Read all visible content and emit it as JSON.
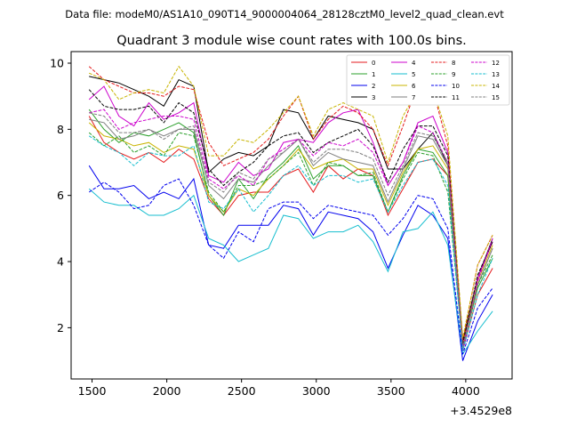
{
  "header": {
    "data_file": "Data file: modeM0/AS1A10_090T14_9000004064_28128cztM0_level2_quad_clean.evt"
  },
  "chart_data": {
    "type": "line",
    "title": "Quadrant 3 module wise count rates with 100.0s bins.",
    "xlabel": "",
    "ylabel": "",
    "x_offset_label": "+3.4529e8",
    "xlim": [
      1360,
      4310
    ],
    "ylim": [
      0.45,
      10.35
    ],
    "x_ticks": [
      1500,
      2000,
      2500,
      3000,
      3500,
      4000
    ],
    "x_tick_labels": [
      "1500",
      "2000",
      "2500",
      "3000",
      "3500",
      "4000"
    ],
    "y_ticks": [
      2,
      4,
      6,
      8,
      10
    ],
    "y_tick_labels": [
      "2",
      "4",
      "6",
      "8",
      "10"
    ],
    "grid": false,
    "legend_position": "top-right",
    "x": [
      1480,
      1580,
      1680,
      1780,
      1880,
      1980,
      2080,
      2180,
      2280,
      2380,
      2480,
      2580,
      2680,
      2780,
      2880,
      2980,
      3080,
      3180,
      3280,
      3380,
      3480,
      3580,
      3680,
      3780,
      3880,
      3980,
      4080,
      4180
    ],
    "series": [
      {
        "name": "0",
        "color": "#e41a1c",
        "dash": "solid",
        "values": [
          8.4,
          7.6,
          7.3,
          7.1,
          7.3,
          7.0,
          7.4,
          7.1,
          5.9,
          5.4,
          6.0,
          6.1,
          6.1,
          6.6,
          6.8,
          6.1,
          6.9,
          6.5,
          6.8,
          6.6,
          5.4,
          6.2,
          7.0,
          7.1,
          6.6,
          1.3,
          3.0,
          3.8
        ]
      },
      {
        "name": "1",
        "color": "#2ca02c",
        "dash": "solid",
        "values": [
          8.6,
          8.0,
          7.6,
          7.9,
          7.8,
          8.0,
          8.2,
          7.9,
          6.0,
          5.4,
          6.5,
          5.9,
          6.6,
          7.0,
          7.5,
          6.5,
          6.9,
          6.9,
          6.6,
          6.6,
          5.5,
          6.6,
          7.4,
          7.3,
          6.6,
          1.4,
          3.2,
          4.1
        ]
      },
      {
        "name": "2",
        "color": "#0000ee",
        "dash": "solid",
        "values": [
          6.9,
          6.2,
          6.2,
          6.3,
          5.9,
          6.1,
          5.9,
          6.5,
          4.5,
          4.4,
          5.1,
          5.1,
          5.1,
          5.7,
          5.6,
          4.8,
          5.5,
          5.4,
          5.3,
          4.9,
          3.8,
          4.8,
          5.7,
          5.4,
          4.7,
          1.0,
          2.2,
          3.0
        ]
      },
      {
        "name": "3",
        "color": "#000000",
        "dash": "solid",
        "values": [
          9.6,
          9.5,
          9.4,
          9.2,
          9.0,
          8.7,
          9.5,
          9.3,
          6.7,
          7.1,
          7.3,
          7.2,
          7.5,
          8.6,
          8.5,
          7.7,
          8.4,
          8.3,
          8.2,
          8.0,
          6.8,
          6.8,
          7.4,
          7.9,
          6.9,
          1.6,
          3.5,
          4.7
        ]
      },
      {
        "name": "4",
        "color": "#cc00cc",
        "dash": "solid",
        "values": [
          8.9,
          9.3,
          8.4,
          8.1,
          8.8,
          8.3,
          8.5,
          8.8,
          6.6,
          6.4,
          7.0,
          6.6,
          6.8,
          7.6,
          7.7,
          7.6,
          8.2,
          8.5,
          8.6,
          7.6,
          6.3,
          7.0,
          8.2,
          8.4,
          7.3,
          1.3,
          3.5,
          4.6
        ]
      },
      {
        "name": "5",
        "color": "#17becf",
        "dash": "solid",
        "values": [
          6.2,
          5.8,
          5.7,
          5.7,
          5.4,
          5.4,
          5.6,
          6.0,
          4.7,
          4.5,
          4.0,
          4.2,
          4.4,
          5.4,
          5.3,
          4.7,
          4.9,
          4.9,
          5.1,
          4.6,
          3.7,
          4.9,
          5.0,
          5.5,
          4.5,
          1.2,
          1.9,
          2.5
        ]
      },
      {
        "name": "6",
        "color": "#c8b400",
        "dash": "solid",
        "values": [
          8.2,
          7.8,
          7.7,
          7.5,
          7.6,
          7.3,
          7.5,
          7.4,
          6.0,
          5.5,
          6.2,
          6.0,
          6.5,
          6.9,
          7.4,
          6.8,
          7.0,
          7.1,
          6.8,
          6.8,
          5.7,
          6.7,
          7.4,
          7.5,
          6.8,
          1.5,
          3.4,
          4.5
        ]
      },
      {
        "name": "7",
        "color": "#7f7f7f",
        "dash": "solid",
        "values": [
          8.3,
          8.2,
          7.7,
          7.8,
          8.0,
          7.8,
          8.0,
          8.0,
          6.3,
          5.9,
          6.5,
          6.4,
          6.9,
          7.3,
          7.7,
          6.9,
          7.3,
          7.1,
          7.0,
          6.9,
          5.8,
          6.8,
          7.8,
          7.7,
          6.9,
          1.4,
          3.3,
          4.4
        ]
      },
      {
        "name": "8",
        "color": "#e41a1c",
        "dash": "dashed",
        "values": [
          9.9,
          9.5,
          9.3,
          9.1,
          9.1,
          9.0,
          9.3,
          9.2,
          7.6,
          6.9,
          7.1,
          7.3,
          7.7,
          8.4,
          9.0,
          7.7,
          8.3,
          8.7,
          8.5,
          8.0,
          6.9,
          8.1,
          9.4,
          9.2,
          7.5,
          1.6,
          3.9,
          4.8
        ]
      },
      {
        "name": "9",
        "color": "#2ca02c",
        "dash": "dashed",
        "values": [
          7.9,
          7.5,
          7.8,
          7.3,
          7.5,
          7.2,
          7.9,
          7.8,
          6.1,
          5.5,
          6.3,
          6.3,
          6.5,
          6.9,
          7.3,
          6.3,
          7.0,
          6.9,
          6.6,
          6.7,
          5.5,
          6.5,
          7.3,
          7.2,
          6.1,
          1.4,
          3.3,
          4.2
        ]
      },
      {
        "name": "10",
        "color": "#0000ee",
        "dash": "dashed",
        "values": [
          6.1,
          6.4,
          6.1,
          5.6,
          5.7,
          6.3,
          6.5,
          5.7,
          4.5,
          4.1,
          4.9,
          4.6,
          5.6,
          5.8,
          5.8,
          5.3,
          5.7,
          5.6,
          5.5,
          5.4,
          4.8,
          5.3,
          6.0,
          5.9,
          5.0,
          1.2,
          2.6,
          3.2
        ]
      },
      {
        "name": "11",
        "color": "#000000",
        "dash": "dashed",
        "values": [
          9.2,
          8.7,
          8.6,
          8.6,
          8.7,
          8.2,
          8.8,
          8.5,
          6.8,
          6.3,
          6.7,
          7.0,
          7.5,
          7.8,
          7.9,
          7.3,
          7.6,
          7.8,
          8.0,
          7.5,
          6.4,
          7.4,
          8.1,
          8.1,
          7.2,
          1.5,
          3.6,
          4.6
        ]
      },
      {
        "name": "12",
        "color": "#cc00cc",
        "dash": "dashed",
        "values": [
          8.5,
          8.6,
          8.0,
          8.2,
          8.3,
          8.4,
          8.4,
          8.3,
          6.5,
          6.2,
          6.6,
          6.3,
          7.1,
          7.4,
          7.7,
          7.2,
          7.6,
          7.5,
          7.7,
          7.3,
          6.3,
          7.0,
          8.1,
          7.9,
          7.0,
          1.4,
          3.4,
          4.7
        ]
      },
      {
        "name": "13",
        "color": "#17becf",
        "dash": "dashed",
        "values": [
          7.8,
          7.5,
          7.3,
          6.9,
          7.3,
          7.2,
          7.2,
          7.5,
          5.8,
          5.6,
          6.2,
          5.5,
          6.0,
          6.6,
          6.9,
          6.3,
          6.6,
          6.6,
          6.4,
          6.5,
          5.5,
          6.3,
          7.0,
          7.1,
          6.3,
          1.3,
          3.0,
          4.1
        ]
      },
      {
        "name": "14",
        "color": "#c8b400",
        "dash": "dashed",
        "values": [
          9.7,
          9.5,
          8.9,
          9.1,
          9.2,
          9.1,
          9.9,
          9.3,
          7.2,
          7.2,
          7.7,
          7.6,
          8.0,
          8.5,
          9.0,
          7.8,
          8.6,
          8.8,
          8.6,
          8.4,
          7.0,
          8.4,
          9.2,
          9.2,
          7.8,
          1.7,
          3.9,
          4.8
        ]
      },
      {
        "name": "15",
        "color": "#7f7f7f",
        "dash": "dashed",
        "values": [
          8.5,
          8.4,
          7.9,
          7.9,
          8.0,
          7.7,
          8.0,
          8.1,
          6.4,
          6.1,
          6.7,
          6.5,
          7.1,
          7.3,
          7.7,
          7.0,
          7.4,
          7.4,
          7.3,
          7.1,
          6.0,
          6.9,
          7.9,
          7.8,
          7.0,
          1.4,
          3.3,
          4.4
        ]
      }
    ]
  }
}
